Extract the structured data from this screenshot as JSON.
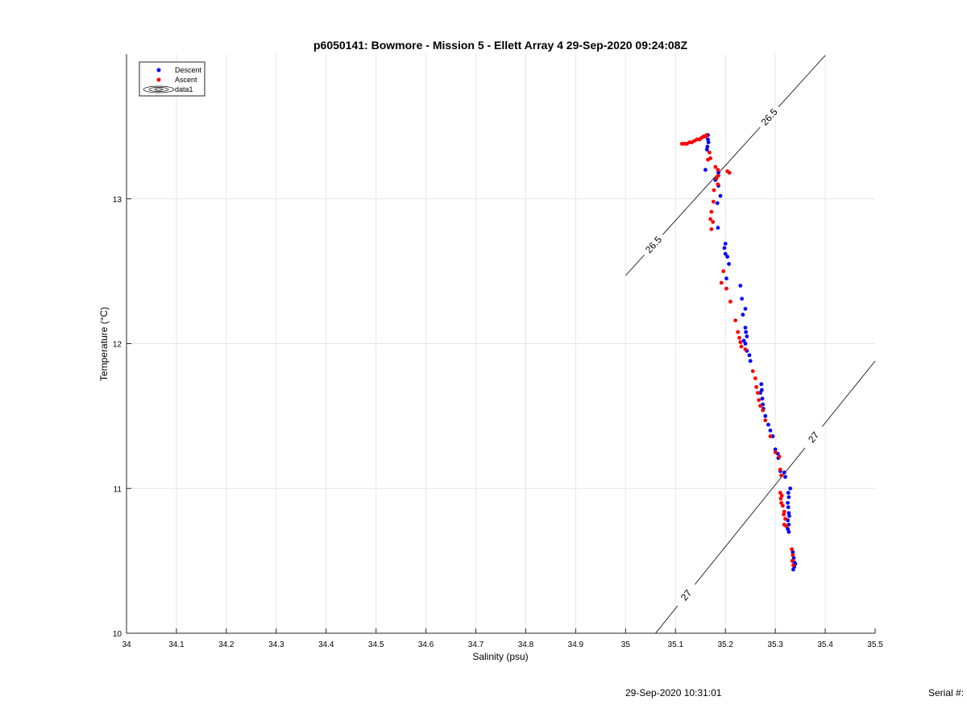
{
  "chart_data": {
    "type": "scatter",
    "title": "p6050141: Bowmore - Mission 5 - Ellett Array 4 29-Sep-2020 09:24:08Z",
    "xlabel": "Salinity (psu)",
    "ylabel": "Temperature (°C)",
    "xlim": [
      34,
      35.5
    ],
    "ylim": [
      10,
      14
    ],
    "x_ticks": [
      "34",
      "34.1",
      "34.2",
      "34.3",
      "34.4",
      "34.5",
      "34.6",
      "34.7",
      "34.8",
      "34.9",
      "35",
      "35.1",
      "35.2",
      "35.3",
      "35.4",
      "35.5"
    ],
    "y_ticks": [
      "10",
      "11",
      "12",
      "13"
    ],
    "grid": true,
    "legend_position": "top-left",
    "legend": [
      {
        "label": "Descent",
        "marker": "dot",
        "color": "#0000ff"
      },
      {
        "label": "Ascent",
        "marker": "dot",
        "color": "#ff0000"
      },
      {
        "label": "data1",
        "marker": "contour",
        "color": "#000000"
      }
    ],
    "series": [
      {
        "name": "Descent",
        "color": "#0000ff",
        "points": [
          [
            35.165,
            13.44
          ],
          [
            35.165,
            13.41
          ],
          [
            35.166,
            13.39
          ],
          [
            35.164,
            13.36
          ],
          [
            35.163,
            13.34
          ],
          [
            35.16,
            13.2
          ],
          [
            35.186,
            13.18
          ],
          [
            35.18,
            13.13
          ],
          [
            35.186,
            13.09
          ],
          [
            35.19,
            13.02
          ],
          [
            35.184,
            12.97
          ],
          [
            35.185,
            12.8
          ],
          [
            35.2,
            12.69
          ],
          [
            35.198,
            12.66
          ],
          [
            35.2,
            12.62
          ],
          [
            35.204,
            12.6
          ],
          [
            35.207,
            12.55
          ],
          [
            35.202,
            12.45
          ],
          [
            35.23,
            12.4
          ],
          [
            35.233,
            12.31
          ],
          [
            35.24,
            12.24
          ],
          [
            35.235,
            12.2
          ],
          [
            35.24,
            12.11
          ],
          [
            35.241,
            12.08
          ],
          [
            35.243,
            12.05
          ],
          [
            35.237,
            12.02
          ],
          [
            35.24,
            12.0
          ],
          [
            35.243,
            11.95
          ],
          [
            35.248,
            11.92
          ],
          [
            35.25,
            11.88
          ],
          [
            35.272,
            11.72
          ],
          [
            35.273,
            11.68
          ],
          [
            35.27,
            11.66
          ],
          [
            35.274,
            11.62
          ],
          [
            35.275,
            11.58
          ],
          [
            35.276,
            11.55
          ],
          [
            35.28,
            11.5
          ],
          [
            35.286,
            11.44
          ],
          [
            35.29,
            11.4
          ],
          [
            35.295,
            11.36
          ],
          [
            35.3,
            11.27
          ],
          [
            35.305,
            11.24
          ],
          [
            35.306,
            11.21
          ],
          [
            35.31,
            11.12
          ],
          [
            35.318,
            11.11
          ],
          [
            35.32,
            11.08
          ],
          [
            35.33,
            11.0
          ],
          [
            35.326,
            10.97
          ],
          [
            35.327,
            10.94
          ],
          [
            35.325,
            10.9
          ],
          [
            35.326,
            10.87
          ],
          [
            35.327,
            10.83
          ],
          [
            35.328,
            10.81
          ],
          [
            35.325,
            10.78
          ],
          [
            35.327,
            10.75
          ],
          [
            35.325,
            10.72
          ],
          [
            35.327,
            10.7
          ],
          [
            35.335,
            10.56
          ],
          [
            35.337,
            10.52
          ],
          [
            35.338,
            10.49
          ],
          [
            35.338,
            10.46
          ],
          [
            35.34,
            10.48
          ],
          [
            35.336,
            10.44
          ]
        ]
      },
      {
        "name": "Ascent",
        "color": "#ff0000",
        "points": [
          [
            35.113,
            13.38
          ],
          [
            35.118,
            13.38
          ],
          [
            35.123,
            13.38
          ],
          [
            35.128,
            13.39
          ],
          [
            35.133,
            13.39
          ],
          [
            35.138,
            13.4
          ],
          [
            35.143,
            13.41
          ],
          [
            35.148,
            13.41
          ],
          [
            35.152,
            13.42
          ],
          [
            35.156,
            13.43
          ],
          [
            35.16,
            13.43
          ],
          [
            35.162,
            13.44
          ],
          [
            35.168,
            13.32
          ],
          [
            35.17,
            13.28
          ],
          [
            35.165,
            13.27
          ],
          [
            35.18,
            13.22
          ],
          [
            35.185,
            13.2
          ],
          [
            35.204,
            13.19
          ],
          [
            35.208,
            13.18
          ],
          [
            35.186,
            13.16
          ],
          [
            35.182,
            13.14
          ],
          [
            35.185,
            13.1
          ],
          [
            35.177,
            13.06
          ],
          [
            35.176,
            12.98
          ],
          [
            35.172,
            12.91
          ],
          [
            35.17,
            12.86
          ],
          [
            35.175,
            12.84
          ],
          [
            35.172,
            12.79
          ],
          [
            35.196,
            12.5
          ],
          [
            35.192,
            12.42
          ],
          [
            35.202,
            12.38
          ],
          [
            35.21,
            12.29
          ],
          [
            35.22,
            12.16
          ],
          [
            35.225,
            12.08
          ],
          [
            35.228,
            12.04
          ],
          [
            35.23,
            12.01
          ],
          [
            35.232,
            11.98
          ],
          [
            35.24,
            11.96
          ],
          [
            35.255,
            11.81
          ],
          [
            35.26,
            11.76
          ],
          [
            35.262,
            11.7
          ],
          [
            35.265,
            11.66
          ],
          [
            35.267,
            11.61
          ],
          [
            35.27,
            11.57
          ],
          [
            35.275,
            11.54
          ],
          [
            35.28,
            11.47
          ],
          [
            35.29,
            11.36
          ],
          [
            35.3,
            11.25
          ],
          [
            35.308,
            11.22
          ],
          [
            35.31,
            11.13
          ],
          [
            35.312,
            11.09
          ],
          [
            35.31,
            10.97
          ],
          [
            35.313,
            10.95
          ],
          [
            35.311,
            10.93
          ],
          [
            35.312,
            10.9
          ],
          [
            35.315,
            10.88
          ],
          [
            35.318,
            10.84
          ],
          [
            35.317,
            10.82
          ],
          [
            35.32,
            10.79
          ],
          [
            35.318,
            10.75
          ],
          [
            35.322,
            10.74
          ],
          [
            35.333,
            10.58
          ],
          [
            35.335,
            10.54
          ],
          [
            35.334,
            10.5
          ],
          [
            35.336,
            10.47
          ]
        ]
      }
    ],
    "contours": [
      {
        "level_label": "26.5",
        "from": [
          35.0,
          12.47
        ],
        "to": [
          35.4,
          13.99
        ]
      },
      {
        "level_label": "27",
        "from": [
          35.06,
          10.0
        ],
        "to": [
          35.5,
          11.88
        ]
      }
    ]
  },
  "footer": {
    "timestamp": "29-Sep-2020 10:31:01",
    "serial": "Serial #:"
  }
}
